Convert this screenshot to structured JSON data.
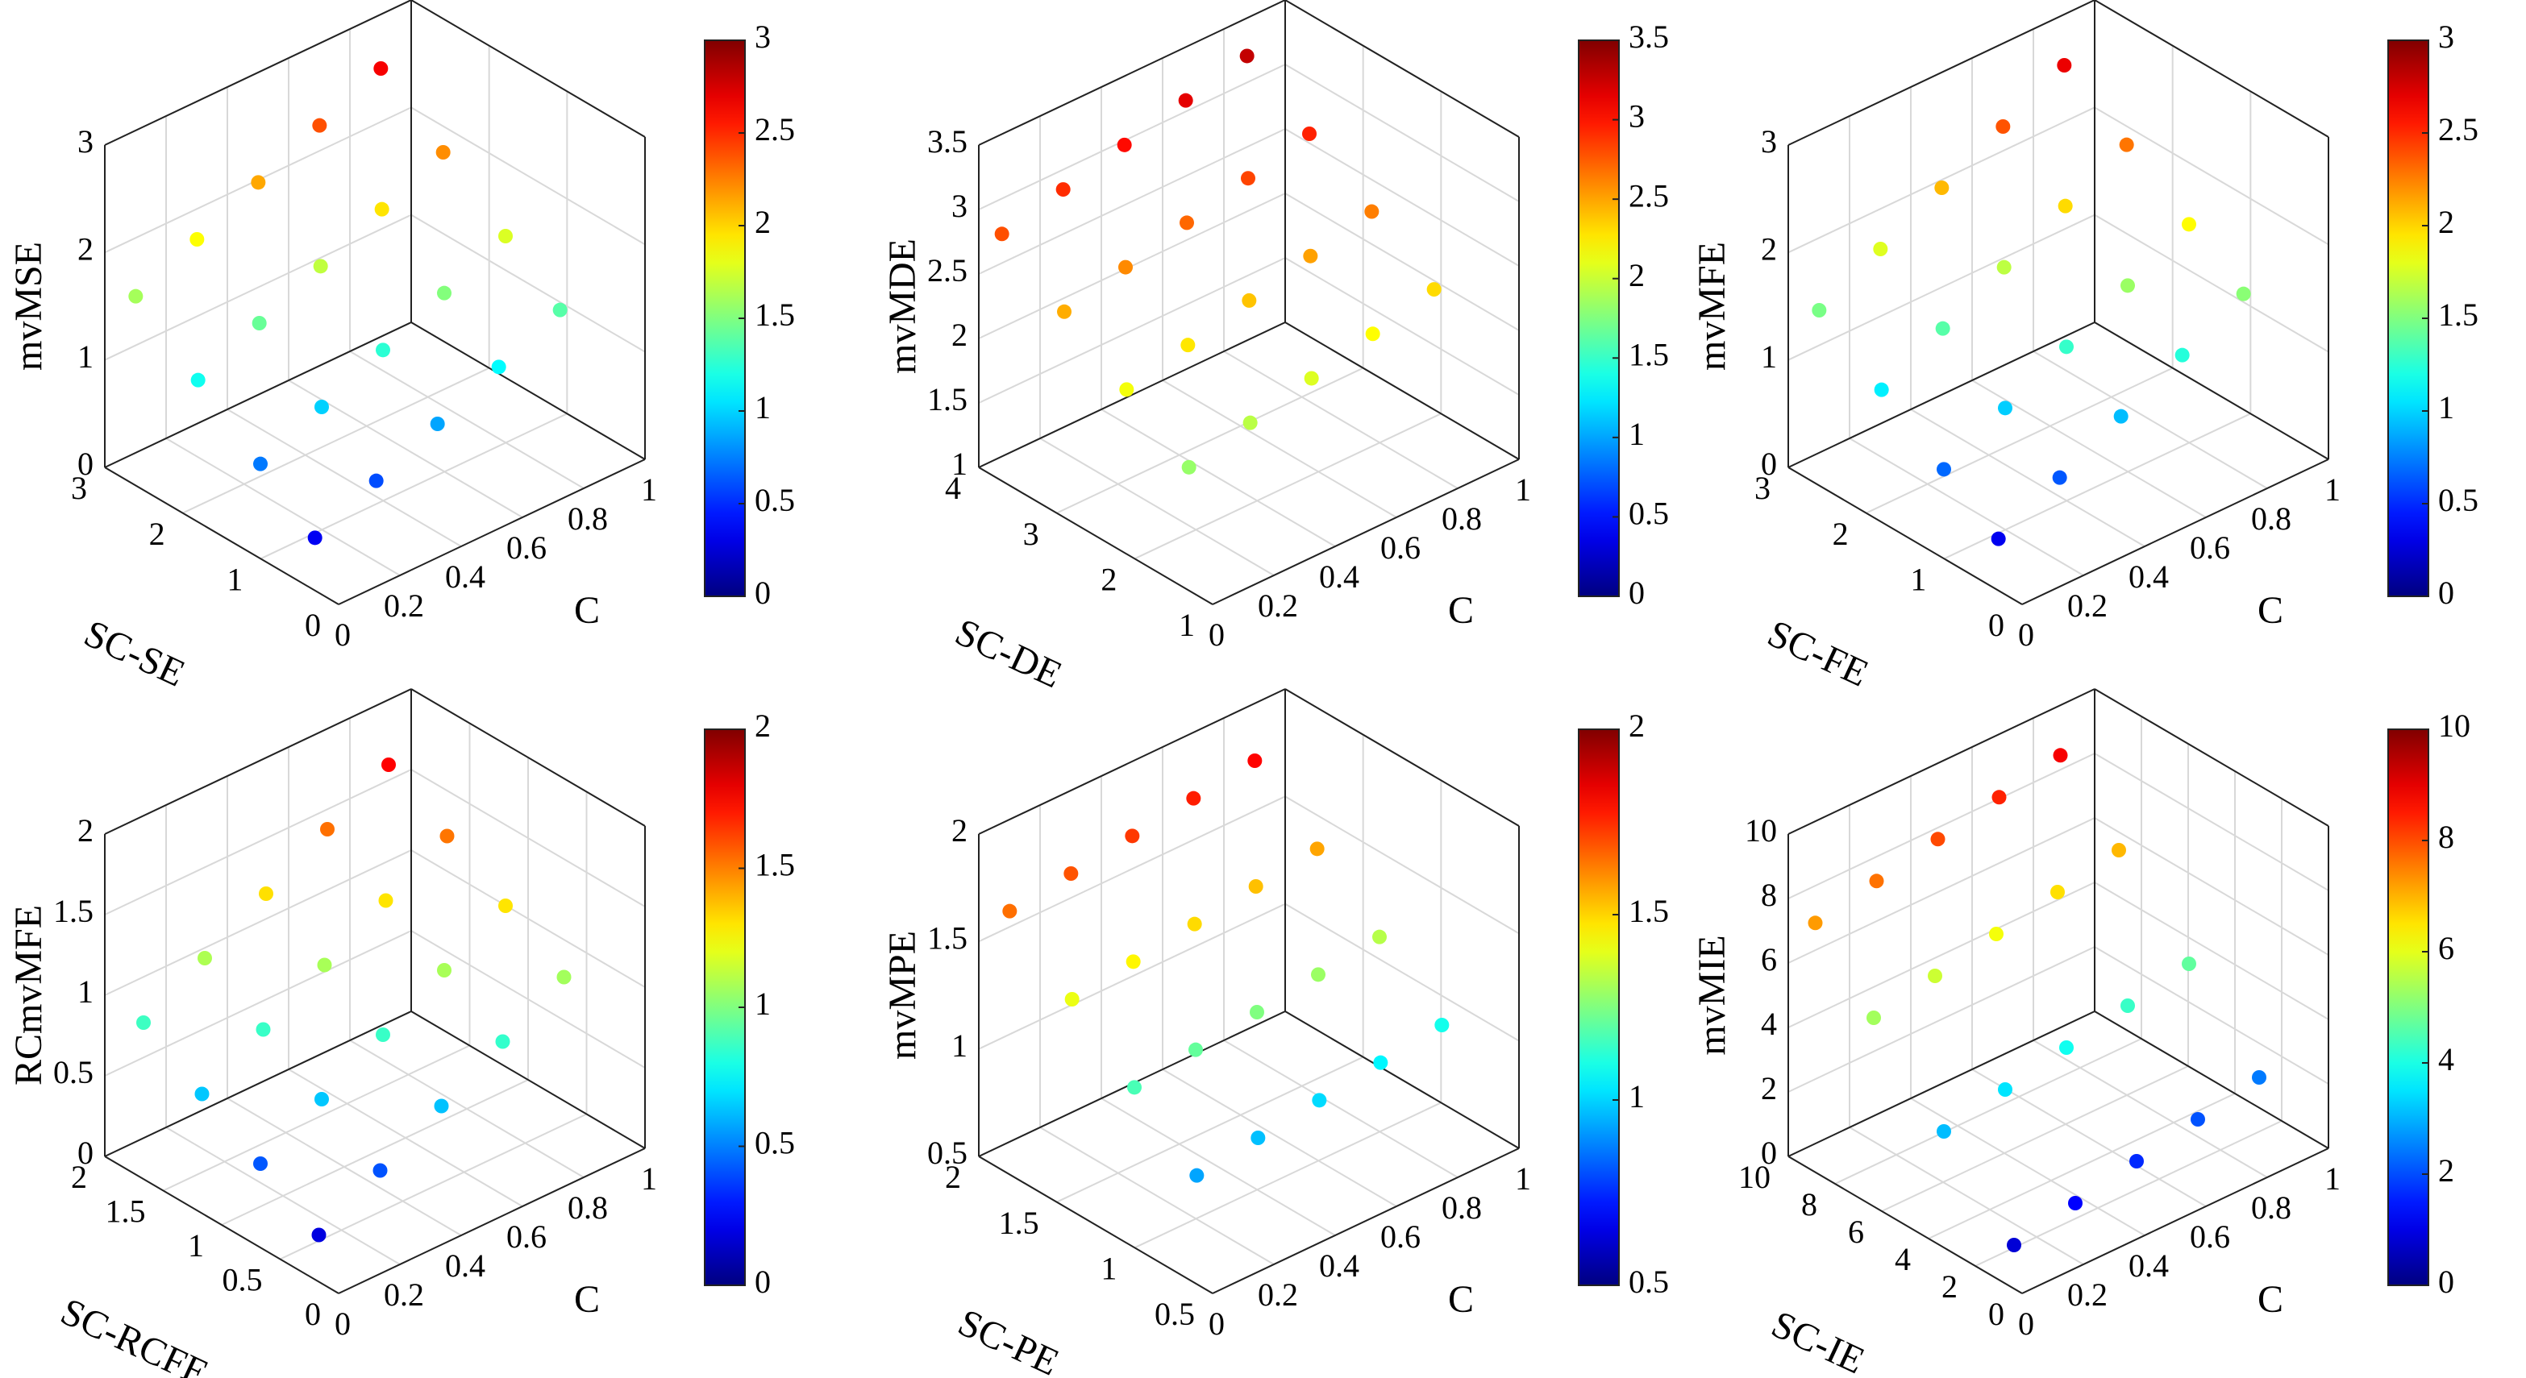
{
  "chart_data": [
    {
      "type": "scatter3d",
      "xlabel": "C",
      "ylabel": "SC-SE",
      "zlabel": "mvMSE",
      "colormap": "jet",
      "grid": true,
      "xlim": [
        0,
        1
      ],
      "xticks": [
        0,
        0.2,
        0.4,
        0.6,
        0.8,
        1
      ],
      "ylim": [
        0,
        3
      ],
      "yticks": [
        0,
        1,
        2,
        3
      ],
      "zlim": [
        0,
        3
      ],
      "zticks": [
        0,
        1,
        2,
        3
      ],
      "clim": [
        0,
        3
      ],
      "cticks": [
        0,
        0.5,
        1,
        1.5,
        2,
        2.5,
        3
      ],
      "x": [
        0.05,
        0.05,
        0.05,
        0.05,
        0.25,
        0.25,
        0.25,
        0.25,
        0.45,
        0.45,
        0.45,
        0.45,
        0.65,
        0.65,
        0.65,
        0.65,
        0.85,
        0.85,
        0.85,
        0.85
      ],
      "y": [
        0.5,
        1.2,
        2,
        2.8,
        0.5,
        1.2,
        2,
        2.8,
        0.5,
        1.2,
        2,
        2.8,
        0.5,
        1.2,
        2,
        2.8,
        0.5,
        1.2,
        2,
        2.8
      ],
      "z": [
        0.34,
        0.73,
        1.17,
        1.61,
        0.6,
        0.99,
        1.43,
        1.87,
        0.86,
        1.25,
        1.69,
        2.13,
        1.12,
        1.51,
        1.95,
        2.39,
        1.38,
        1.77,
        2.21,
        2.65
      ]
    },
    {
      "type": "scatter3d",
      "xlabel": "C",
      "ylabel": "SC-DE",
      "zlabel": "mvMDE",
      "colormap": "jet",
      "grid": true,
      "xlim": [
        0,
        1
      ],
      "xticks": [
        0,
        0.2,
        0.4,
        0.6,
        0.8,
        1
      ],
      "ylim": [
        1,
        4
      ],
      "yticks": [
        1,
        2,
        3,
        4
      ],
      "zlim": [
        1,
        3.5
      ],
      "zticks": [
        1,
        1.5,
        2,
        2.5,
        3,
        3.5
      ],
      "clim": [
        0,
        3.5
      ],
      "cticks": [
        0,
        0.5,
        1,
        1.5,
        2,
        2.5,
        3,
        3.5
      ],
      "x": [
        0.05,
        0.05,
        0.05,
        0.05,
        0.25,
        0.25,
        0.25,
        0.25,
        0.45,
        0.45,
        0.45,
        0.45,
        0.65,
        0.65,
        0.65,
        0.65,
        0.85,
        0.85,
        0.85,
        0.85
      ],
      "y": [
        1.5,
        2.3,
        3.1,
        3.9,
        1.5,
        2.3,
        3.1,
        3.9,
        1.5,
        2.3,
        3.1,
        3.9,
        1.5,
        2.3,
        3.1,
        3.9,
        1.5,
        2.3,
        3.1,
        3.9
      ],
      "z": [
        1.83,
        2.15,
        2.47,
        2.79,
        1.95,
        2.27,
        2.59,
        2.91,
        2.07,
        2.39,
        2.71,
        3.03,
        2.19,
        2.51,
        2.83,
        3.15,
        2.31,
        2.63,
        2.95,
        3.27
      ]
    },
    {
      "type": "scatter3d",
      "xlabel": "C",
      "ylabel": "SC-FE",
      "zlabel": "mvMFE",
      "colormap": "jet",
      "grid": true,
      "xlim": [
        0,
        1
      ],
      "xticks": [
        0,
        0.2,
        0.4,
        0.6,
        0.8,
        1
      ],
      "ylim": [
        0,
        3
      ],
      "yticks": [
        0,
        1,
        2,
        3
      ],
      "zlim": [
        0,
        3
      ],
      "zticks": [
        0,
        1,
        2,
        3
      ],
      "clim": [
        0,
        3
      ],
      "cticks": [
        0,
        0.5,
        1,
        1.5,
        2,
        2.5,
        3
      ],
      "x": [
        0.05,
        0.05,
        0.05,
        0.05,
        0.25,
        0.25,
        0.25,
        0.25,
        0.45,
        0.45,
        0.45,
        0.45,
        0.65,
        0.65,
        0.65,
        0.65,
        0.85,
        0.85,
        0.85,
        0.85
      ],
      "y": [
        0.5,
        1.2,
        2,
        2.8,
        0.5,
        1.2,
        2,
        2.8,
        0.5,
        1.2,
        2,
        2.8,
        0.5,
        1.2,
        2,
        2.8,
        0.5,
        1.2,
        2,
        2.8
      ],
      "z": [
        0.33,
        0.68,
        1.08,
        1.48,
        0.63,
        0.98,
        1.38,
        1.78,
        0.93,
        1.28,
        1.68,
        2.08,
        1.23,
        1.58,
        1.98,
        2.38,
        1.53,
        1.88,
        2.28,
        2.68
      ]
    },
    {
      "type": "scatter3d",
      "xlabel": "C",
      "ylabel": "SC-RCFE",
      "zlabel": "RCmvMFE",
      "colormap": "jet",
      "grid": true,
      "xlim": [
        0,
        1
      ],
      "xticks": [
        0,
        0.2,
        0.4,
        0.6,
        0.8,
        1
      ],
      "ylim": [
        0,
        2
      ],
      "yticks": [
        0,
        0.5,
        1,
        1.5,
        2
      ],
      "zlim": [
        0,
        2
      ],
      "zticks": [
        0,
        0.5,
        1,
        1.5,
        2
      ],
      "clim": [
        0,
        2
      ],
      "cticks": [
        0,
        0.5,
        1,
        1.5,
        2
      ],
      "x": [
        0.05,
        0.05,
        0.05,
        0.05,
        0.25,
        0.25,
        0.25,
        0.25,
        0.45,
        0.45,
        0.45,
        0.45,
        0.65,
        0.65,
        0.65,
        0.65,
        0.85,
        0.85,
        0.85,
        0.85
      ],
      "y": [
        0.3,
        0.8,
        1.3,
        1.8,
        0.3,
        0.8,
        1.3,
        1.8,
        0.3,
        0.8,
        1.3,
        1.8,
        0.3,
        0.8,
        1.3,
        1.8,
        0.3,
        0.8,
        1.3,
        1.8
      ],
      "z": [
        0.19,
        0.42,
        0.64,
        0.87,
        0.41,
        0.64,
        0.86,
        1.09,
        0.63,
        0.86,
        1.08,
        1.31,
        0.85,
        1.08,
        1.3,
        1.53,
        1.07,
        1.3,
        1.52,
        1.75
      ]
    },
    {
      "type": "scatter3d",
      "xlabel": "C",
      "ylabel": "SC-PE",
      "zlabel": "mvMPE",
      "colormap": "jet",
      "grid": true,
      "xlim": [
        0,
        1
      ],
      "xticks": [
        0,
        0.2,
        0.4,
        0.6,
        0.8,
        1
      ],
      "ylim": [
        0.5,
        2
      ],
      "yticks": [
        0.5,
        1,
        1.5,
        2
      ],
      "zlim": [
        0.5,
        2
      ],
      "zticks": [
        0.5,
        1,
        1.5,
        2
      ],
      "clim": [
        0.5,
        2
      ],
      "cticks": [
        0.5,
        1,
        1.5,
        2
      ],
      "x": [
        0.05,
        0.05,
        0.05,
        0.05,
        0.25,
        0.25,
        0.25,
        0.25,
        0.45,
        0.45,
        0.45,
        0.45,
        0.65,
        0.65,
        0.65,
        0.65,
        0.85,
        0.85,
        0.85,
        0.85
      ],
      "y": [
        0.7,
        1.1,
        1.5,
        1.9,
        0.7,
        1.1,
        1.5,
        1.9,
        0.7,
        1.1,
        1.5,
        1.9,
        0.7,
        1.1,
        1.5,
        1.9,
        0.7,
        1.1,
        1.5,
        1.9
      ],
      "z": [
        0.93,
        1.17,
        1.41,
        1.65,
        0.97,
        1.21,
        1.45,
        1.69,
        1.01,
        1.25,
        1.49,
        1.73,
        1.05,
        1.29,
        1.53,
        1.77,
        1.09,
        1.33,
        1.57,
        1.81
      ]
    },
    {
      "type": "scatter3d",
      "xlabel": "C",
      "ylabel": "SC-IE",
      "zlabel": "mvMIE",
      "colormap": "jet",
      "grid": true,
      "xlim": [
        0,
        1
      ],
      "xticks": [
        0,
        0.2,
        0.4,
        0.6,
        0.8,
        1
      ],
      "ylim": [
        0,
        10
      ],
      "yticks": [
        0,
        2,
        4,
        6,
        8,
        10
      ],
      "zlim": [
        0,
        10
      ],
      "zticks": [
        0,
        2,
        4,
        6,
        8,
        10
      ],
      "clim": [
        0,
        10
      ],
      "cticks": [
        0,
        2,
        4,
        6,
        8,
        10
      ],
      "x": [
        0.05,
        0.05,
        0.05,
        0.05,
        0.25,
        0.25,
        0.25,
        0.25,
        0.45,
        0.45,
        0.45,
        0.45,
        0.65,
        0.65,
        0.65,
        0.65,
        0.85,
        0.85,
        0.85,
        0.85
      ],
      "y": [
        1,
        4,
        7,
        9.5,
        1,
        4,
        7,
        9.5,
        1,
        4,
        7,
        9.5,
        1,
        4,
        7,
        9.5,
        1,
        4,
        7,
        9.5
      ],
      "z": [
        0.85,
        3.1,
        5.35,
        7.23,
        1.25,
        3.5,
        5.75,
        7.63,
        1.65,
        3.9,
        6.15,
        8.03,
        2.05,
        4.3,
        6.55,
        8.43,
        2.45,
        4.7,
        6.95,
        8.83
      ]
    }
  ]
}
